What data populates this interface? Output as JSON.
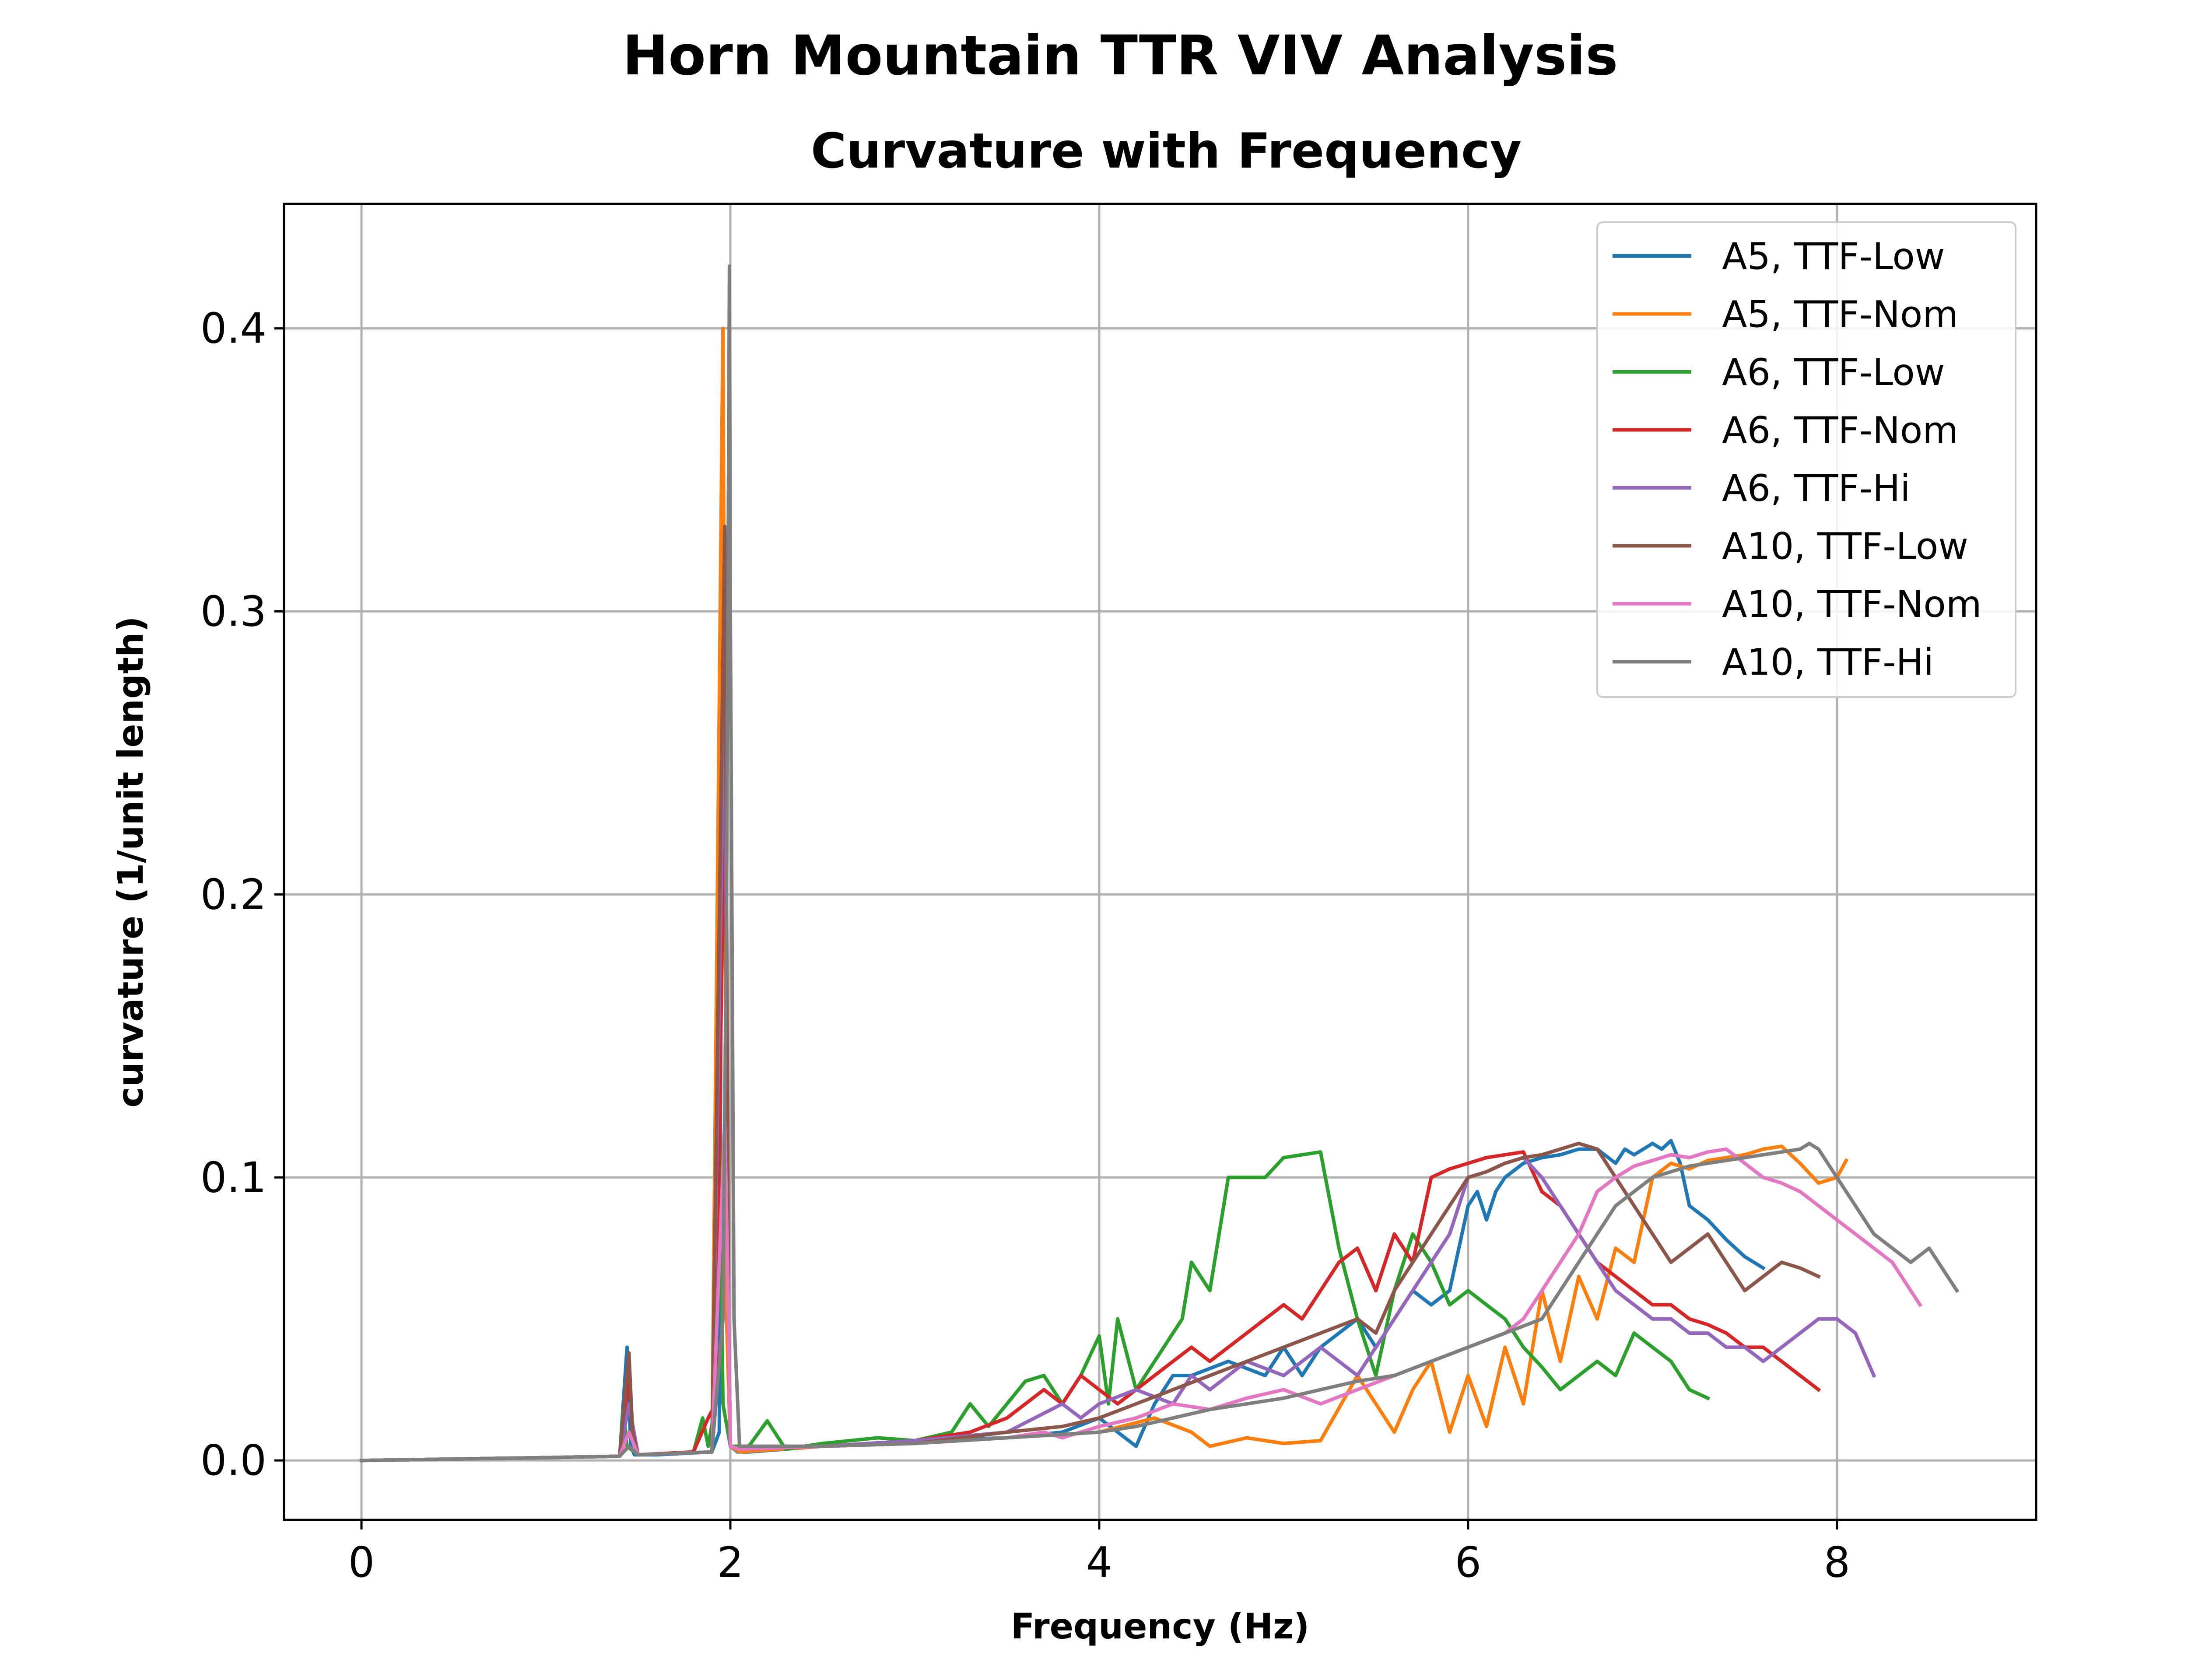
{
  "chart_data": {
    "type": "line",
    "suptitle": "Horn Mountain TTR VIV Analysis",
    "title": "Curvature with Frequency",
    "xlabel": "Frequency (Hz)",
    "ylabel": "curvature (1/unit length)",
    "xlim": [
      -0.42,
      9.08
    ],
    "ylim": [
      -0.021,
      0.444
    ],
    "xticks": [
      0,
      2,
      4,
      6,
      8
    ],
    "xtick_labels": [
      "0",
      "2",
      "4",
      "6",
      "8"
    ],
    "yticks": [
      0.0,
      0.1,
      0.2,
      0.3,
      0.4
    ],
    "ytick_labels": [
      "0.0",
      "0.1",
      "0.2",
      "0.3",
      "0.4"
    ],
    "grid": true,
    "legend_position": "top-right",
    "series": [
      {
        "name": "A5, TTF-Low",
        "color": "#1f77b4",
        "x": [
          0.0,
          0.5,
          1.0,
          1.4,
          1.44,
          1.46,
          1.48,
          1.6,
          1.9,
          1.94,
          1.96,
          1.98,
          2.0,
          2.04,
          2.1,
          2.5,
          3.0,
          3.5,
          3.8,
          4.0,
          4.1,
          4.2,
          4.3,
          4.4,
          4.5,
          4.7,
          4.9,
          5.0,
          5.1,
          5.2,
          5.3,
          5.4,
          5.5,
          5.6,
          5.7,
          5.8,
          5.9,
          6.0,
          6.05,
          6.1,
          6.15,
          6.2,
          6.3,
          6.4,
          6.5,
          6.6,
          6.7,
          6.8,
          6.85,
          6.9,
          7.0,
          7.05,
          7.1,
          7.15,
          7.2,
          7.3,
          7.4,
          7.5,
          7.6
        ],
        "y": [
          0.0,
          0.0005,
          0.001,
          0.0015,
          0.04,
          0.005,
          0.002,
          0.002,
          0.003,
          0.01,
          0.355,
          0.1,
          0.005,
          0.003,
          0.003,
          0.005,
          0.007,
          0.008,
          0.01,
          0.015,
          0.01,
          0.005,
          0.02,
          0.03,
          0.03,
          0.035,
          0.03,
          0.04,
          0.03,
          0.04,
          0.045,
          0.05,
          0.04,
          0.05,
          0.06,
          0.055,
          0.06,
          0.09,
          0.095,
          0.085,
          0.095,
          0.1,
          0.105,
          0.107,
          0.108,
          0.11,
          0.11,
          0.105,
          0.11,
          0.108,
          0.112,
          0.11,
          0.113,
          0.105,
          0.09,
          0.085,
          0.078,
          0.072,
          0.068
        ]
      },
      {
        "name": "A5, TTF-Nom",
        "color": "#ff7f0e",
        "x": [
          0.0,
          0.5,
          1.0,
          1.4,
          1.45,
          1.47,
          1.5,
          1.9,
          1.96,
          1.98,
          2.0,
          2.05,
          2.5,
          3.0,
          3.5,
          4.0,
          4.3,
          4.5,
          4.6,
          4.8,
          5.0,
          5.2,
          5.4,
          5.6,
          5.7,
          5.8,
          5.9,
          6.0,
          6.1,
          6.2,
          6.3,
          6.4,
          6.5,
          6.6,
          6.7,
          6.8,
          6.9,
          7.0,
          7.1,
          7.2,
          7.3,
          7.4,
          7.5,
          7.6,
          7.7,
          7.8,
          7.9,
          8.0,
          8.05
        ],
        "y": [
          0.0,
          0.0005,
          0.001,
          0.0015,
          0.035,
          0.01,
          0.002,
          0.003,
          0.4,
          0.05,
          0.005,
          0.003,
          0.005,
          0.006,
          0.008,
          0.01,
          0.015,
          0.01,
          0.005,
          0.008,
          0.006,
          0.007,
          0.03,
          0.01,
          0.025,
          0.035,
          0.01,
          0.03,
          0.012,
          0.04,
          0.02,
          0.06,
          0.035,
          0.065,
          0.05,
          0.075,
          0.07,
          0.1,
          0.105,
          0.103,
          0.106,
          0.107,
          0.108,
          0.11,
          0.111,
          0.105,
          0.098,
          0.1,
          0.106
        ]
      },
      {
        "name": "A6, TTF-Low",
        "color": "#2ca02c",
        "x": [
          0.0,
          0.5,
          1.0,
          1.4,
          1.42,
          1.44,
          1.5,
          1.8,
          1.85,
          1.88,
          1.92,
          1.94,
          1.96,
          2.0,
          2.1,
          2.2,
          2.3,
          2.5,
          2.8,
          3.0,
          3.2,
          3.3,
          3.4,
          3.5,
          3.6,
          3.7,
          3.8,
          3.9,
          4.0,
          4.05,
          4.1,
          4.2,
          4.3,
          4.4,
          4.45,
          4.5,
          4.6,
          4.7,
          4.8,
          4.9,
          5.0,
          5.1,
          5.2,
          5.3,
          5.4,
          5.5,
          5.6,
          5.7,
          5.8,
          5.9,
          6.0,
          6.1,
          6.2,
          6.3,
          6.4,
          6.5,
          6.6,
          6.7,
          6.8,
          6.9,
          7.0,
          7.1,
          7.2,
          7.3
        ],
        "y": [
          0.0,
          0.0005,
          0.001,
          0.0015,
          0.018,
          0.005,
          0.002,
          0.003,
          0.015,
          0.005,
          0.02,
          0.123,
          0.02,
          0.005,
          0.005,
          0.014,
          0.004,
          0.006,
          0.008,
          0.007,
          0.01,
          0.02,
          0.012,
          0.02,
          0.028,
          0.03,
          0.02,
          0.03,
          0.044,
          0.02,
          0.05,
          0.025,
          0.035,
          0.045,
          0.05,
          0.07,
          0.06,
          0.1,
          0.1,
          0.1,
          0.107,
          0.108,
          0.109,
          0.075,
          0.05,
          0.03,
          0.06,
          0.08,
          0.07,
          0.055,
          0.06,
          0.055,
          0.05,
          0.04,
          0.033,
          0.025,
          0.03,
          0.035,
          0.03,
          0.045,
          0.04,
          0.035,
          0.025,
          0.022
        ]
      },
      {
        "name": "A6, TTF-Nom",
        "color": "#d62728",
        "x": [
          0.0,
          0.5,
          1.0,
          1.4,
          1.45,
          1.47,
          1.5,
          1.8,
          1.88,
          1.92,
          1.97,
          1.99,
          2.0,
          2.05,
          2.5,
          3.0,
          3.3,
          3.5,
          3.6,
          3.7,
          3.8,
          3.9,
          4.0,
          4.1,
          4.2,
          4.3,
          4.4,
          4.5,
          4.6,
          4.7,
          4.8,
          4.9,
          5.0,
          5.1,
          5.2,
          5.3,
          5.4,
          5.5,
          5.6,
          5.7,
          5.8,
          5.9,
          6.0,
          6.1,
          6.2,
          6.3,
          6.4,
          6.5,
          6.6,
          6.7,
          6.8,
          6.9,
          7.0,
          7.1,
          7.2,
          7.3,
          7.4,
          7.5,
          7.6,
          7.7,
          7.8,
          7.9
        ],
        "y": [
          0.0,
          0.0005,
          0.001,
          0.0015,
          0.03,
          0.01,
          0.002,
          0.003,
          0.015,
          0.02,
          0.25,
          0.05,
          0.005,
          0.004,
          0.005,
          0.007,
          0.01,
          0.015,
          0.02,
          0.025,
          0.02,
          0.03,
          0.025,
          0.02,
          0.025,
          0.03,
          0.035,
          0.04,
          0.035,
          0.04,
          0.045,
          0.05,
          0.055,
          0.05,
          0.06,
          0.07,
          0.075,
          0.06,
          0.08,
          0.07,
          0.1,
          0.103,
          0.105,
          0.107,
          0.108,
          0.109,
          0.095,
          0.09,
          0.08,
          0.07,
          0.065,
          0.06,
          0.055,
          0.055,
          0.05,
          0.048,
          0.045,
          0.04,
          0.04,
          0.035,
          0.03,
          0.025
        ]
      },
      {
        "name": "A6, TTF-Hi",
        "color": "#9467bd",
        "x": [
          0.0,
          0.5,
          1.0,
          1.4,
          1.45,
          1.5,
          1.9,
          1.97,
          1.99,
          2.0,
          2.05,
          2.5,
          3.0,
          3.5,
          3.8,
          3.9,
          4.0,
          4.2,
          4.4,
          4.5,
          4.6,
          4.8,
          5.0,
          5.2,
          5.3,
          5.4,
          5.5,
          5.6,
          5.7,
          5.8,
          5.9,
          6.0,
          6.1,
          6.2,
          6.3,
          6.4,
          6.5,
          6.6,
          6.7,
          6.8,
          6.9,
          7.0,
          7.1,
          7.2,
          7.3,
          7.4,
          7.5,
          7.6,
          7.7,
          7.8,
          7.9,
          8.0,
          8.1,
          8.2
        ],
        "y": [
          0.0,
          0.0005,
          0.001,
          0.0015,
          0.02,
          0.002,
          0.003,
          0.28,
          0.05,
          0.005,
          0.004,
          0.005,
          0.007,
          0.01,
          0.02,
          0.015,
          0.02,
          0.025,
          0.02,
          0.03,
          0.025,
          0.035,
          0.03,
          0.04,
          0.035,
          0.03,
          0.04,
          0.05,
          0.06,
          0.07,
          0.08,
          0.1,
          0.102,
          0.105,
          0.107,
          0.1,
          0.09,
          0.08,
          0.07,
          0.06,
          0.055,
          0.05,
          0.05,
          0.045,
          0.045,
          0.04,
          0.04,
          0.035,
          0.04,
          0.045,
          0.05,
          0.05,
          0.045,
          0.03
        ]
      },
      {
        "name": "A10, TTF-Low",
        "color": "#8c564b",
        "x": [
          0.0,
          0.5,
          1.0,
          1.4,
          1.45,
          1.47,
          1.5,
          1.9,
          1.97,
          1.99,
          2.0,
          2.05,
          2.5,
          3.0,
          3.5,
          3.8,
          4.0,
          4.2,
          4.4,
          4.6,
          4.8,
          5.0,
          5.2,
          5.4,
          5.5,
          5.6,
          5.7,
          5.8,
          5.9,
          6.0,
          6.1,
          6.2,
          6.3,
          6.4,
          6.5,
          6.6,
          6.7,
          6.8,
          6.9,
          7.0,
          7.1,
          7.2,
          7.3,
          7.4,
          7.5,
          7.6,
          7.7,
          7.8,
          7.9
        ],
        "y": [
          0.0,
          0.0005,
          0.001,
          0.0015,
          0.038,
          0.01,
          0.002,
          0.003,
          0.33,
          0.05,
          0.005,
          0.004,
          0.005,
          0.006,
          0.01,
          0.012,
          0.015,
          0.02,
          0.025,
          0.03,
          0.035,
          0.04,
          0.045,
          0.05,
          0.045,
          0.06,
          0.07,
          0.08,
          0.09,
          0.1,
          0.102,
          0.105,
          0.107,
          0.108,
          0.11,
          0.112,
          0.11,
          0.1,
          0.09,
          0.08,
          0.07,
          0.075,
          0.08,
          0.07,
          0.06,
          0.065,
          0.07,
          0.068,
          0.065
        ]
      },
      {
        "name": "A10, TTF-Nom",
        "color": "#e377c2",
        "x": [
          0.0,
          0.5,
          1.0,
          1.4,
          1.45,
          1.5,
          1.9,
          1.97,
          1.99,
          2.0,
          2.05,
          2.5,
          3.0,
          3.5,
          3.7,
          3.8,
          3.9,
          4.0,
          4.2,
          4.4,
          4.6,
          4.8,
          5.0,
          5.2,
          5.4,
          5.6,
          5.8,
          6.0,
          6.2,
          6.3,
          6.4,
          6.5,
          6.6,
          6.7,
          6.8,
          6.9,
          7.0,
          7.1,
          7.2,
          7.3,
          7.4,
          7.5,
          7.6,
          7.7,
          7.8,
          7.9,
          8.0,
          8.1,
          8.2,
          8.3,
          8.4,
          8.45
        ],
        "y": [
          0.0,
          0.0005,
          0.001,
          0.0015,
          0.01,
          0.002,
          0.003,
          0.12,
          0.05,
          0.005,
          0.004,
          0.005,
          0.006,
          0.008,
          0.01,
          0.008,
          0.01,
          0.012,
          0.015,
          0.02,
          0.018,
          0.022,
          0.025,
          0.02,
          0.025,
          0.03,
          0.035,
          0.04,
          0.045,
          0.05,
          0.06,
          0.07,
          0.08,
          0.095,
          0.1,
          0.104,
          0.106,
          0.108,
          0.107,
          0.109,
          0.11,
          0.105,
          0.1,
          0.098,
          0.095,
          0.09,
          0.085,
          0.08,
          0.075,
          0.07,
          0.06,
          0.055
        ]
      },
      {
        "name": "A10, TTF-Hi",
        "color": "#7f7f7f",
        "x": [
          0.0,
          0.5,
          1.0,
          1.4,
          1.45,
          1.5,
          1.9,
          1.96,
          1.98,
          1.995,
          2.0,
          2.02,
          2.05,
          2.5,
          3.0,
          3.5,
          4.0,
          4.2,
          4.4,
          4.6,
          4.8,
          5.0,
          5.2,
          5.4,
          5.6,
          5.8,
          6.0,
          6.2,
          6.4,
          6.5,
          6.6,
          6.7,
          6.8,
          6.9,
          7.0,
          7.1,
          7.2,
          7.3,
          7.4,
          7.5,
          7.6,
          7.7,
          7.8,
          7.85,
          7.9,
          8.0,
          8.1,
          8.2,
          8.3,
          8.4,
          8.5,
          8.6,
          8.65
        ],
        "y": [
          0.0,
          0.0005,
          0.001,
          0.0015,
          0.005,
          0.002,
          0.003,
          0.05,
          0.2,
          0.422,
          0.3,
          0.05,
          0.005,
          0.005,
          0.006,
          0.008,
          0.01,
          0.012,
          0.015,
          0.018,
          0.02,
          0.022,
          0.025,
          0.028,
          0.03,
          0.035,
          0.04,
          0.045,
          0.05,
          0.06,
          0.07,
          0.08,
          0.09,
          0.095,
          0.1,
          0.102,
          0.104,
          0.105,
          0.106,
          0.107,
          0.108,
          0.109,
          0.11,
          0.112,
          0.11,
          0.1,
          0.09,
          0.08,
          0.075,
          0.07,
          0.075,
          0.065,
          0.06
        ]
      }
    ]
  }
}
